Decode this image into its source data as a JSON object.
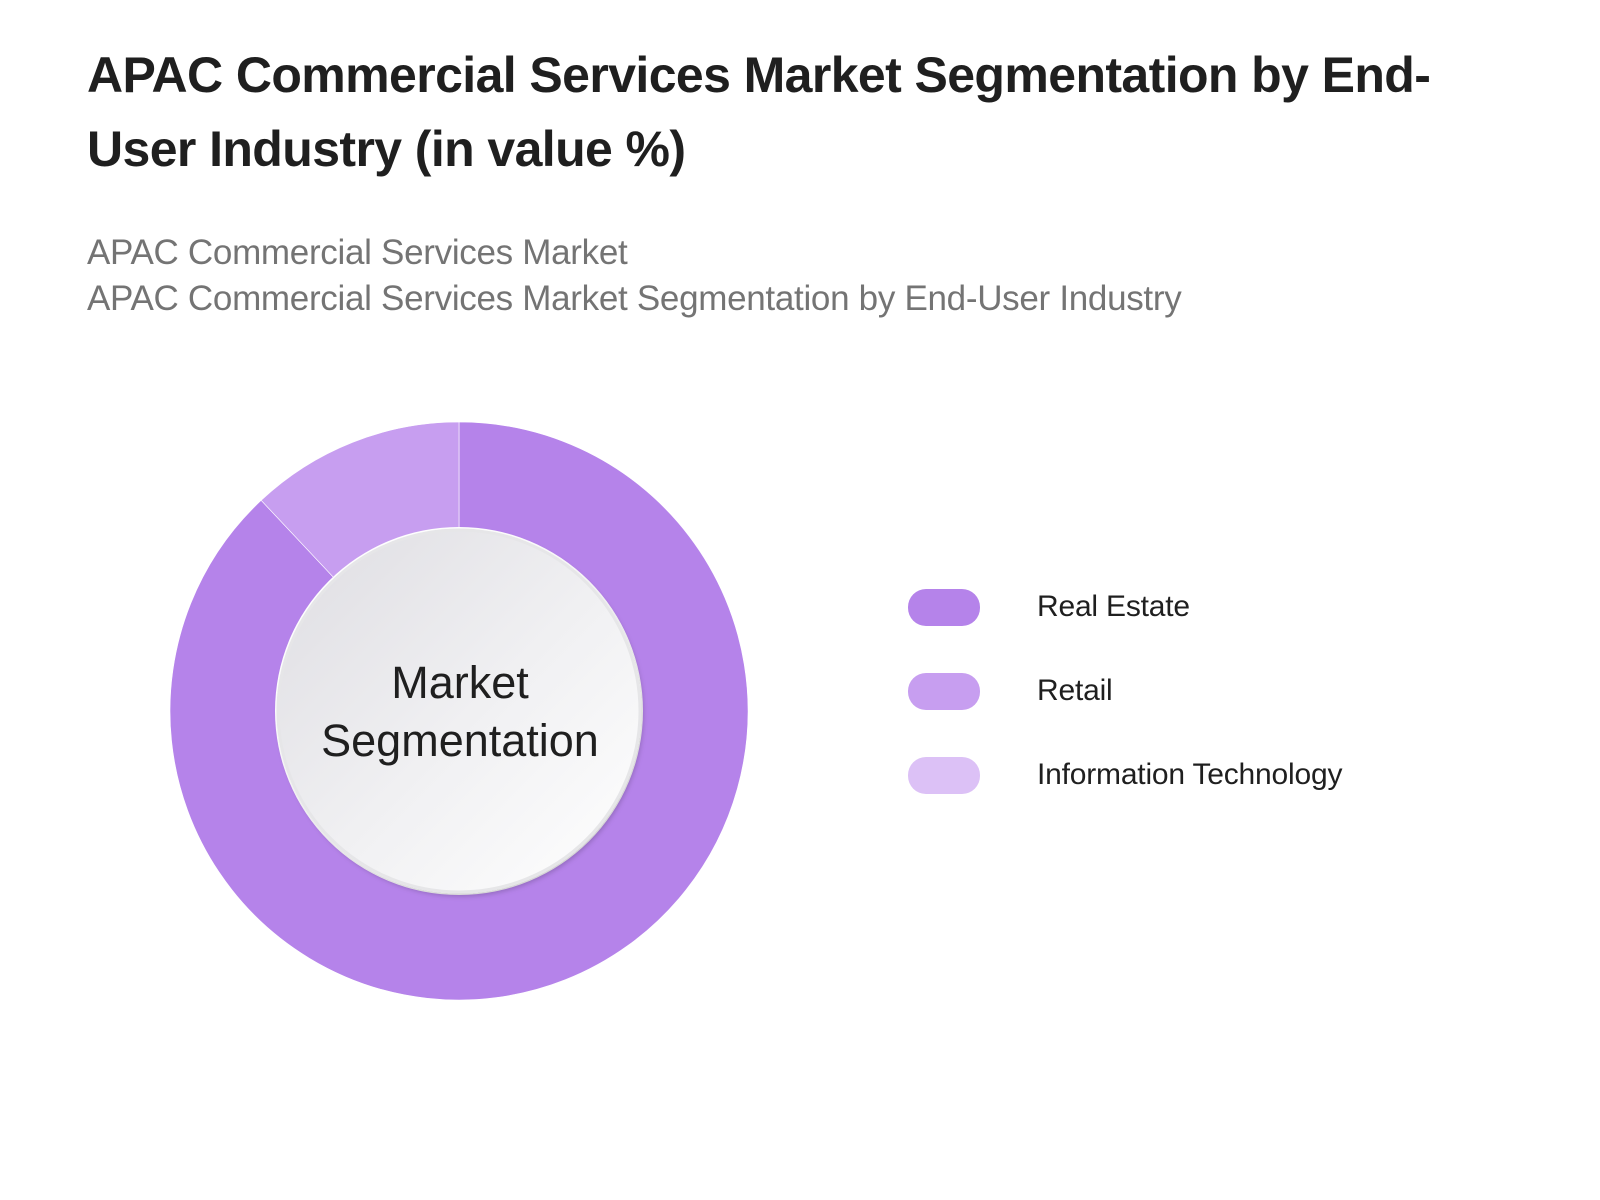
{
  "title": "APAC Commercial Services Market Segmentation by End-User Industry (in value %)",
  "subtitle": {
    "line1": "APAC Commercial Services Market",
    "line2": "APAC Commercial Services Market Segmentation by End-User Industry"
  },
  "center_label": {
    "line1": "Market",
    "line2": "Segmentation"
  },
  "legend": [
    {
      "label": "Real Estate",
      "color": "#b583ea"
    },
    {
      "label": "Retail",
      "color": "#c79ef0"
    },
    {
      "label": "Information Technology",
      "color": "#dcc1f6"
    }
  ],
  "chart_data": {
    "type": "pie",
    "subtype": "donut",
    "title": "APAC Commercial Services Market Segmentation by End-User Industry (in value %)",
    "subtitle": "APAC Commercial Services Market / APAC Commercial Services Market Segmentation by End-User Industry",
    "center_text": "Market Segmentation",
    "categories": [
      "Real Estate",
      "Retail",
      "Information Technology"
    ],
    "values": [
      88,
      12,
      0
    ],
    "units": "%",
    "colors": [
      "#b583ea",
      "#c79ef0",
      "#dcc1f6"
    ],
    "legend_position": "right",
    "start_angle_deg": 0,
    "direction": "clockwise"
  }
}
